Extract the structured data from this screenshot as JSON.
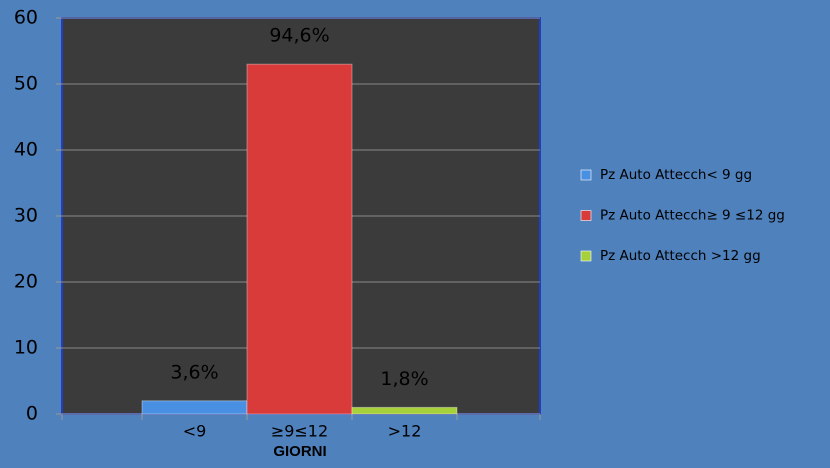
{
  "chart_data": {
    "type": "bar",
    "categories": [
      "<9",
      "≥9≤12",
      ">12"
    ],
    "series": [
      {
        "name": "Pz Auto Attecch< 9 gg",
        "color": "#4a90e2",
        "values": [
          2,
          null,
          null
        ]
      },
      {
        "name": "Pz Auto Attecch≥ 9 ≤12 gg",
        "color": "#d93b3b",
        "values": [
          null,
          53,
          null
        ]
      },
      {
        "name": "Pz Auto Attecch >12 gg",
        "color": "#a6d13a",
        "values": [
          null,
          null,
          1
        ]
      }
    ],
    "annotations": [
      "3,6%",
      "94,6%",
      "1,8%"
    ],
    "xlabel": "GIORNI",
    "ylim": [
      0,
      60
    ],
    "yticks": [
      0,
      10,
      20,
      30,
      40,
      50,
      60
    ],
    "grid": true,
    "legend": "right"
  }
}
